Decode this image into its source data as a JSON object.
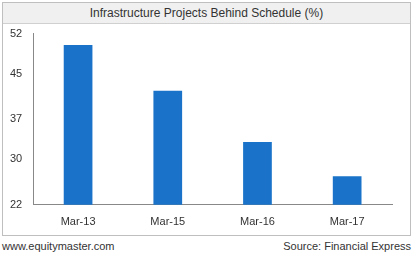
{
  "chart_data": {
    "type": "bar",
    "title": "Infrastructure Projects Behind Schedule (%)",
    "categories": [
      "Mar-13",
      "Mar-15",
      "Mar-16",
      "Mar-17"
    ],
    "values": [
      50,
      42,
      33,
      27
    ],
    "color": "#1a73c9",
    "ylim": [
      22,
      52
    ],
    "yticks": [
      22,
      30,
      37,
      45,
      52
    ],
    "grid": false,
    "annotations": [
      "www.equitymaster.com",
      "Source: Financial Express"
    ]
  }
}
